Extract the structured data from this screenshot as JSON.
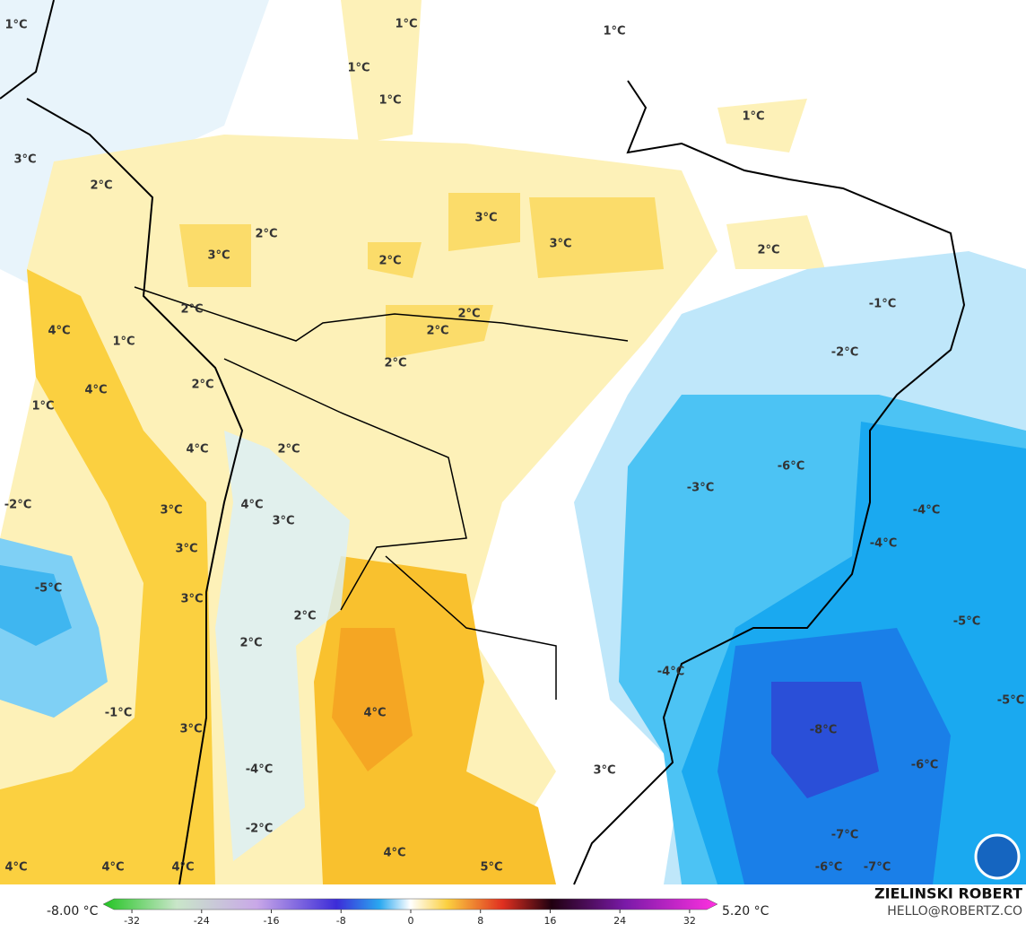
{
  "map": {
    "labels": [
      "1°C",
      "1°C",
      "1°C",
      "1°C",
      "1°C",
      "1°C",
      "3°C",
      "2°C",
      "2°C",
      "3°C",
      "3°C",
      "3°C",
      "2°C",
      "2°C",
      "2°C",
      "2°C",
      "-1°C",
      "4°C",
      "1°C",
      "2°C",
      "-2°C",
      "2°C",
      "2°C",
      "4°C",
      "1°C",
      "2°C",
      "4°C",
      "-6°C",
      "-3°C",
      "4°C",
      "-2°C",
      "3°C",
      "-4°C",
      "3°C",
      "3°C",
      "-4°C",
      "-5°C",
      "3°C",
      "2°C",
      "-5°C",
      "2°C",
      "-4°C",
      "-1°C",
      "4°C",
      "-5°C",
      "-8°C",
      "3°C",
      "-6°C",
      "-4°C",
      "3°C",
      "-2°C",
      "-7°C",
      "4°C",
      "4°C",
      "4°C",
      "4°C",
      "5°C",
      "-6°C",
      "-7°C"
    ],
    "colorbar": {
      "range": [
        -35.3,
        35.2
      ],
      "ticks": [
        -32,
        -24,
        -16,
        -8,
        0,
        8,
        16,
        24,
        32
      ],
      "min_label": "-8.00 °C",
      "max_label": "5.20 °C"
    },
    "credit": {
      "name": "ZIELINSKI ROBERT",
      "contact": "HELLO@ROBERTZ.CO"
    }
  }
}
